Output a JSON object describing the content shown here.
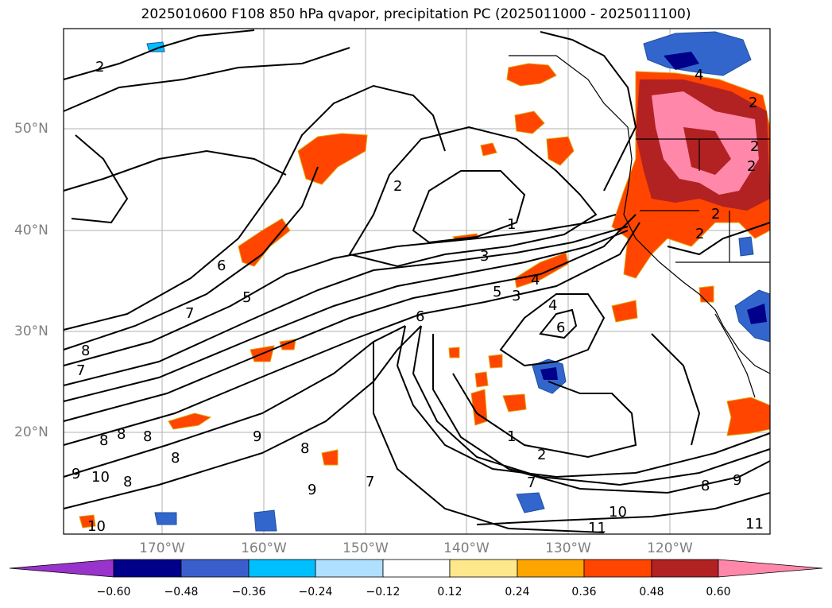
{
  "title": "2025010600 F108 850 hPa qvapor, precipitation PC (2025011000 - 2025011100)",
  "map": {
    "lat_labels": [
      "50°N",
      "40°N",
      "30°N",
      "20°N"
    ],
    "lon_labels": [
      "170°W",
      "160°W",
      "150°W",
      "140°W",
      "130°W",
      "120°W"
    ],
    "contour_labels": [
      "2",
      "2",
      "1",
      "3",
      "5",
      "3",
      "6",
      "6",
      "5",
      "4",
      "6",
      "7",
      "8",
      "7",
      "8",
      "8",
      "8",
      "9",
      "8",
      "8",
      "9",
      "10",
      "8",
      "10",
      "7",
      "9",
      "1",
      "2",
      "7",
      "10",
      "11",
      "11",
      "8",
      "9",
      "2",
      "4",
      "2",
      "2",
      "2",
      "2",
      "4"
    ],
    "colors": {
      "land_border": "#000000",
      "gridline": "#b0b0b0",
      "wet_orange": "#ff4500",
      "wet_deep": "#b22222",
      "wet_pink": "#ff88aa",
      "dry_blue": "#3366cc",
      "dry_navy": "#00008b"
    }
  },
  "colorbar": {
    "ticks": [
      "−0.60",
      "−0.48",
      "−0.36",
      "−0.24",
      "−0.12",
      "0.12",
      "0.24",
      "0.36",
      "0.48",
      "0.60"
    ],
    "colors": [
      "#9933cc",
      "#00008b",
      "#3a5fcd",
      "#00bfff",
      "#b0e0ff",
      "#ffffff",
      "#ffe88c",
      "#ffa500",
      "#ff4500",
      "#b22222",
      "#ff88aa"
    ]
  }
}
